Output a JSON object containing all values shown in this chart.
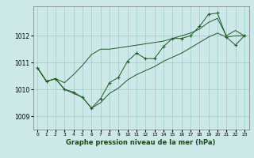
{
  "xlabel": "Graphe pression niveau de la mer (hPa)",
  "xlim": [
    -0.5,
    23.5
  ],
  "ylim": [
    1008.5,
    1013.1
  ],
  "yticks": [
    1009,
    1010,
    1011,
    1012
  ],
  "xticks": [
    0,
    1,
    2,
    3,
    4,
    5,
    6,
    7,
    8,
    9,
    10,
    11,
    12,
    13,
    14,
    15,
    16,
    17,
    18,
    19,
    20,
    21,
    22,
    23
  ],
  "bg_color": "#cce8e8",
  "grid_color": "#99cccc",
  "line_color": "#1a5c1a",
  "main_y": [
    1010.8,
    1010.3,
    1010.4,
    1010.0,
    1009.9,
    1009.7,
    1009.3,
    1009.65,
    1010.25,
    1010.45,
    1011.05,
    1011.35,
    1011.15,
    1011.15,
    1011.6,
    1011.9,
    1011.9,
    1012.0,
    1012.35,
    1012.8,
    1012.85,
    1011.95,
    1011.65,
    1012.0
  ],
  "upper_y": [
    1010.8,
    1010.3,
    1010.4,
    1010.25,
    1010.55,
    1010.9,
    1011.3,
    1011.5,
    1011.5,
    1011.55,
    1011.6,
    1011.65,
    1011.7,
    1011.75,
    1011.8,
    1011.9,
    1012.0,
    1012.1,
    1012.25,
    1012.5,
    1012.65,
    1012.0,
    1012.2,
    1012.0
  ],
  "lower_y": [
    1010.8,
    1010.3,
    1010.4,
    1010.0,
    1009.85,
    1009.7,
    1009.3,
    1009.5,
    1009.85,
    1010.05,
    1010.35,
    1010.55,
    1010.7,
    1010.85,
    1011.05,
    1011.2,
    1011.35,
    1011.55,
    1011.75,
    1011.95,
    1012.1,
    1011.95,
    1012.0,
    1012.0
  ],
  "xlabel_fontsize": 6.0,
  "xlabel_color": "#1a4a1a",
  "ytick_fontsize": 5.5,
  "xtick_fontsize": 4.2
}
